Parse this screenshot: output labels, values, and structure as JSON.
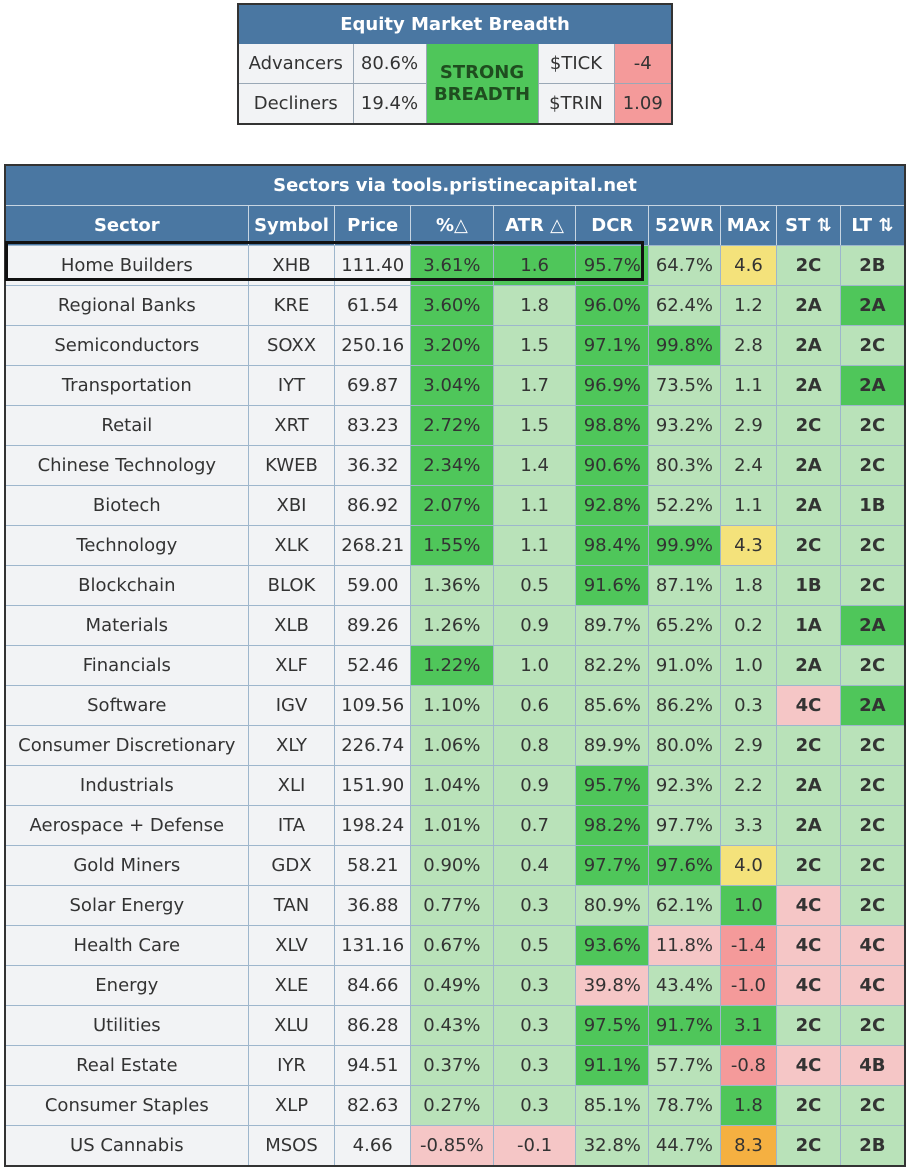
{
  "breadth": {
    "title": "Equity Market Breadth",
    "advancers_label": "Advancers",
    "advancers_value": "80.6%",
    "decliners_label": "Decliners",
    "decliners_value": "19.4%",
    "status_line1": "STRONG",
    "status_line2": "BREADTH",
    "tick_label": "$TICK",
    "tick_value": "-4",
    "trin_label": "$TRIN",
    "trin_value": "1.09"
  },
  "sectors": {
    "title": "Sectors via tools.pristinecapital.net",
    "columns": [
      "Sector",
      "Symbol",
      "Price",
      "%△",
      "ATR △",
      "DCR",
      "52WR",
      "MAx",
      "ST ⇅",
      "LT ⇅"
    ],
    "rows": [
      {
        "sector": "Home Builders",
        "symbol": "XHB",
        "price": "111.40",
        "pct": "3.61%",
        "atr": "1.6",
        "dcr": "95.7%",
        "wr": "64.7%",
        "max": "4.6",
        "st": "2C",
        "lt": "2B"
      },
      {
        "sector": "Regional Banks",
        "symbol": "KRE",
        "price": "61.54",
        "pct": "3.60%",
        "atr": "1.8",
        "dcr": "96.0%",
        "wr": "62.4%",
        "max": "1.2",
        "st": "2A",
        "lt": "2A"
      },
      {
        "sector": "Semiconductors",
        "symbol": "SOXX",
        "price": "250.16",
        "pct": "3.20%",
        "atr": "1.5",
        "dcr": "97.1%",
        "wr": "99.8%",
        "max": "2.8",
        "st": "2A",
        "lt": "2C"
      },
      {
        "sector": "Transportation",
        "symbol": "IYT",
        "price": "69.87",
        "pct": "3.04%",
        "atr": "1.7",
        "dcr": "96.9%",
        "wr": "73.5%",
        "max": "1.1",
        "st": "2A",
        "lt": "2A"
      },
      {
        "sector": "Retail",
        "symbol": "XRT",
        "price": "83.23",
        "pct": "2.72%",
        "atr": "1.5",
        "dcr": "98.8%",
        "wr": "93.2%",
        "max": "2.9",
        "st": "2C",
        "lt": "2C"
      },
      {
        "sector": "Chinese Technology",
        "symbol": "KWEB",
        "price": "36.32",
        "pct": "2.34%",
        "atr": "1.4",
        "dcr": "90.6%",
        "wr": "80.3%",
        "max": "2.4",
        "st": "2A",
        "lt": "2C"
      },
      {
        "sector": "Biotech",
        "symbol": "XBI",
        "price": "86.92",
        "pct": "2.07%",
        "atr": "1.1",
        "dcr": "92.8%",
        "wr": "52.2%",
        "max": "1.1",
        "st": "2A",
        "lt": "1B"
      },
      {
        "sector": "Technology",
        "symbol": "XLK",
        "price": "268.21",
        "pct": "1.55%",
        "atr": "1.1",
        "dcr": "98.4%",
        "wr": "99.9%",
        "max": "4.3",
        "st": "2C",
        "lt": "2C"
      },
      {
        "sector": "Blockchain",
        "symbol": "BLOK",
        "price": "59.00",
        "pct": "1.36%",
        "atr": "0.5",
        "dcr": "91.6%",
        "wr": "87.1%",
        "max": "1.8",
        "st": "1B",
        "lt": "2C"
      },
      {
        "sector": "Materials",
        "symbol": "XLB",
        "price": "89.26",
        "pct": "1.26%",
        "atr": "0.9",
        "dcr": "89.7%",
        "wr": "65.2%",
        "max": "0.2",
        "st": "1A",
        "lt": "2A"
      },
      {
        "sector": "Financials",
        "symbol": "XLF",
        "price": "52.46",
        "pct": "1.22%",
        "atr": "1.0",
        "dcr": "82.2%",
        "wr": "91.0%",
        "max": "1.0",
        "st": "2A",
        "lt": "2C"
      },
      {
        "sector": "Software",
        "symbol": "IGV",
        "price": "109.56",
        "pct": "1.10%",
        "atr": "0.6",
        "dcr": "85.6%",
        "wr": "86.2%",
        "max": "0.3",
        "st": "4C",
        "lt": "2A"
      },
      {
        "sector": "Consumer Discretionary",
        "symbol": "XLY",
        "price": "226.74",
        "pct": "1.06%",
        "atr": "0.8",
        "dcr": "89.9%",
        "wr": "80.0%",
        "max": "2.9",
        "st": "2C",
        "lt": "2C"
      },
      {
        "sector": "Industrials",
        "symbol": "XLI",
        "price": "151.90",
        "pct": "1.04%",
        "atr": "0.9",
        "dcr": "95.7%",
        "wr": "92.3%",
        "max": "2.2",
        "st": "2A",
        "lt": "2C"
      },
      {
        "sector": "Aerospace + Defense",
        "symbol": "ITA",
        "price": "198.24",
        "pct": "1.01%",
        "atr": "0.7",
        "dcr": "98.2%",
        "wr": "97.7%",
        "max": "3.3",
        "st": "2A",
        "lt": "2C"
      },
      {
        "sector": "Gold Miners",
        "symbol": "GDX",
        "price": "58.21",
        "pct": "0.90%",
        "atr": "0.4",
        "dcr": "97.7%",
        "wr": "97.6%",
        "max": "4.0",
        "st": "2C",
        "lt": "2C"
      },
      {
        "sector": "Solar Energy",
        "symbol": "TAN",
        "price": "36.88",
        "pct": "0.77%",
        "atr": "0.3",
        "dcr": "80.9%",
        "wr": "62.1%",
        "max": "1.0",
        "st": "4C",
        "lt": "2C"
      },
      {
        "sector": "Health Care",
        "symbol": "XLV",
        "price": "131.16",
        "pct": "0.67%",
        "atr": "0.5",
        "dcr": "93.6%",
        "wr": "11.8%",
        "max": "-1.4",
        "st": "4C",
        "lt": "4C"
      },
      {
        "sector": "Energy",
        "symbol": "XLE",
        "price": "84.66",
        "pct": "0.49%",
        "atr": "0.3",
        "dcr": "39.8%",
        "wr": "43.4%",
        "max": "-1.0",
        "st": "4C",
        "lt": "4C"
      },
      {
        "sector": "Utilities",
        "symbol": "XLU",
        "price": "86.28",
        "pct": "0.43%",
        "atr": "0.3",
        "dcr": "97.5%",
        "wr": "91.7%",
        "max": "3.1",
        "st": "2C",
        "lt": "2C"
      },
      {
        "sector": "Real Estate",
        "symbol": "IYR",
        "price": "94.51",
        "pct": "0.37%",
        "atr": "0.3",
        "dcr": "91.1%",
        "wr": "57.7%",
        "max": "-0.8",
        "st": "4C",
        "lt": "4B"
      },
      {
        "sector": "Consumer Staples",
        "symbol": "XLP",
        "price": "82.63",
        "pct": "0.27%",
        "atr": "0.3",
        "dcr": "85.1%",
        "wr": "78.7%",
        "max": "1.8",
        "st": "2C",
        "lt": "2C"
      },
      {
        "sector": "US Cannabis",
        "symbol": "MSOS",
        "price": "4.66",
        "pct": "-0.85%",
        "atr": "-0.1",
        "dcr": "32.8%",
        "wr": "44.7%",
        "max": "8.3",
        "st": "2C",
        "lt": "2B"
      }
    ],
    "cell_colors": [
      [
        "g-strong",
        "g-strong",
        "g-strong",
        "g-light",
        "yellow",
        "g-light",
        "g-light"
      ],
      [
        "g-strong",
        "g-light",
        "g-strong",
        "g-light",
        "g-light",
        "g-light",
        "g-strong"
      ],
      [
        "g-strong",
        "g-light",
        "g-strong",
        "g-strong",
        "g-light",
        "g-light",
        "g-light"
      ],
      [
        "g-strong",
        "g-light",
        "g-strong",
        "g-light",
        "g-light",
        "g-light",
        "g-strong"
      ],
      [
        "g-strong",
        "g-light",
        "g-strong",
        "g-light",
        "g-light",
        "g-light",
        "g-light"
      ],
      [
        "g-strong",
        "g-light",
        "g-strong",
        "g-light",
        "g-light",
        "g-light",
        "g-light"
      ],
      [
        "g-strong",
        "g-light",
        "g-strong",
        "g-light",
        "g-light",
        "g-light",
        "g-light"
      ],
      [
        "g-strong",
        "g-light",
        "g-strong",
        "g-strong",
        "yellow",
        "g-light",
        "g-light"
      ],
      [
        "g-light",
        "g-light",
        "g-strong",
        "g-light",
        "g-light",
        "g-light",
        "g-light"
      ],
      [
        "g-light",
        "g-light",
        "g-light",
        "g-light",
        "g-light",
        "g-light",
        "g-strong"
      ],
      [
        "g-strong",
        "g-light",
        "g-light",
        "g-light",
        "g-light",
        "g-light",
        "g-light"
      ],
      [
        "g-light",
        "g-light",
        "g-light",
        "g-light",
        "g-light",
        "r-light",
        "g-strong"
      ],
      [
        "g-light",
        "g-light",
        "g-light",
        "g-light",
        "g-light",
        "g-light",
        "g-light"
      ],
      [
        "g-light",
        "g-light",
        "g-strong",
        "g-light",
        "g-light",
        "g-light",
        "g-light"
      ],
      [
        "g-light",
        "g-light",
        "g-strong",
        "g-light",
        "g-light",
        "g-light",
        "g-light"
      ],
      [
        "g-light",
        "g-light",
        "g-strong",
        "g-strong",
        "yellow",
        "g-light",
        "g-light"
      ],
      [
        "g-light",
        "g-light",
        "g-light",
        "g-light",
        "g-strong",
        "r-light",
        "g-light"
      ],
      [
        "g-light",
        "g-light",
        "g-strong",
        "r-light",
        "r-mid",
        "r-light",
        "r-light"
      ],
      [
        "g-light",
        "g-light",
        "r-light",
        "g-light",
        "r-mid",
        "r-light",
        "r-light"
      ],
      [
        "g-light",
        "g-light",
        "g-strong",
        "g-strong",
        "g-strong",
        "g-light",
        "g-light"
      ],
      [
        "g-light",
        "g-light",
        "g-strong",
        "g-light",
        "r-mid",
        "r-light",
        "r-light"
      ],
      [
        "g-light",
        "g-light",
        "g-light",
        "g-light",
        "g-strong",
        "g-light",
        "g-light"
      ],
      [
        "r-light",
        "r-light",
        "g-light",
        "g-light",
        "orange",
        "g-light",
        "g-light"
      ]
    ],
    "highlighted_row": "Home Builders"
  }
}
